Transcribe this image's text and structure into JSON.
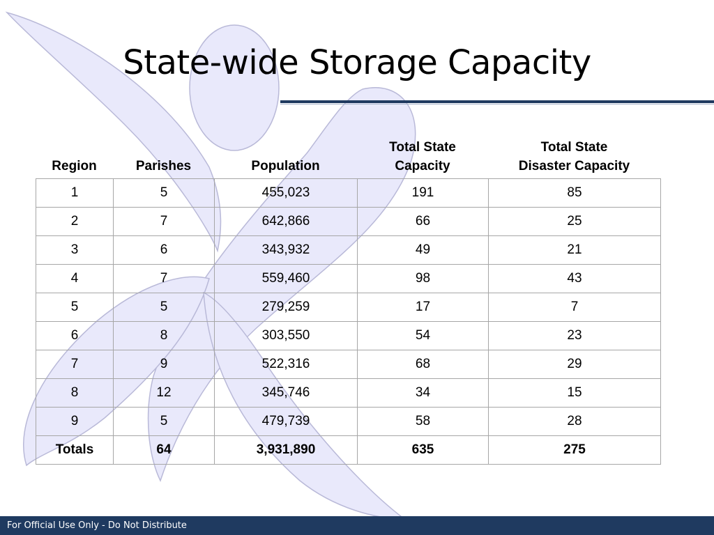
{
  "slide": {
    "title": "State-wide Storage Capacity",
    "footer": "For Official Use Only - Do Not Distribute"
  },
  "colors": {
    "footer_bar": "#1f3a60",
    "figure_fill": "#e9e9fb",
    "figure_stroke": "#b9b9d8"
  },
  "table": {
    "headers": {
      "region": "Region",
      "parishes": "Parishes",
      "population": "Population",
      "capacity_line1": "Total State",
      "capacity_line2": "Capacity",
      "disaster_line1": "Total State",
      "disaster_line2": "Disaster Capacity"
    },
    "rows": [
      {
        "region": "1",
        "parishes": "5",
        "population": "455,023",
        "capacity": "191",
        "disaster": "85"
      },
      {
        "region": "2",
        "parishes": "7",
        "population": "642,866",
        "capacity": "66",
        "disaster": "25"
      },
      {
        "region": "3",
        "parishes": "6",
        "population": "343,932",
        "capacity": "49",
        "disaster": "21"
      },
      {
        "region": "4",
        "parishes": "7",
        "population": "559,460",
        "capacity": "98",
        "disaster": "43"
      },
      {
        "region": "5",
        "parishes": "5",
        "population": "279,259",
        "capacity": "17",
        "disaster": "7"
      },
      {
        "region": "6",
        "parishes": "8",
        "population": "303,550",
        "capacity": "54",
        "disaster": "23"
      },
      {
        "region": "7",
        "parishes": "9",
        "population": "522,316",
        "capacity": "68",
        "disaster": "29"
      },
      {
        "region": "8",
        "parishes": "12",
        "population": "345,746",
        "capacity": "34",
        "disaster": "15"
      },
      {
        "region": "9",
        "parishes": "5",
        "population": "479,739",
        "capacity": "58",
        "disaster": "28"
      }
    ],
    "totals": {
      "label": "Totals",
      "parishes": "64",
      "population": "3,931,890",
      "capacity": "635",
      "disaster": "275"
    }
  }
}
